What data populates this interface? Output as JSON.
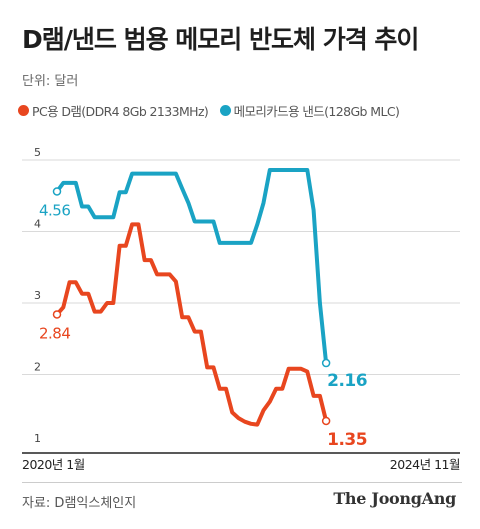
{
  "header": {
    "title": "D램/낸드 범용 메모리 반도체 가격 추이",
    "unit_label": "단위: 달러"
  },
  "footer": {
    "source": "자료: D램익스체인지",
    "brand": "The JoongAng"
  },
  "colors": {
    "dram": "#e8461f",
    "nand": "#1aa3c4",
    "grid": "#dadada",
    "axis": "#222222"
  },
  "chart_data": {
    "type": "line",
    "title": "D램/낸드 범용 메모리 반도체 가격 추이",
    "ylabel": "단위: 달러",
    "xlabel": "",
    "ylim": [
      1,
      5
    ],
    "y_ticks": [
      1,
      2,
      3,
      4,
      5
    ],
    "x_range": [
      "2020-01",
      "2024-11"
    ],
    "x_tick_labels": [
      "2020년 1월",
      "2024년 11월"
    ],
    "grid": true,
    "legend_position": "top-left",
    "series": [
      {
        "name": "PC용 D램(DDR4 8Gb 2133MHz)",
        "color": "#e8461f",
        "start_label": "2.84",
        "end_label": "1.35",
        "points": [
          [
            "2020-01",
            2.84
          ],
          [
            "2020-02",
            2.94
          ],
          [
            "2020-03",
            3.29
          ],
          [
            "2020-04",
            3.29
          ],
          [
            "2020-05",
            3.13
          ],
          [
            "2020-06",
            3.13
          ],
          [
            "2020-07",
            2.88
          ],
          [
            "2020-08",
            2.88
          ],
          [
            "2020-09",
            3.0
          ],
          [
            "2020-10",
            3.0
          ],
          [
            "2020-11",
            3.8
          ],
          [
            "2020-12",
            3.8
          ],
          [
            "2021-01",
            4.1
          ],
          [
            "2021-02",
            4.1
          ],
          [
            "2021-03",
            3.6
          ],
          [
            "2021-04",
            3.6
          ],
          [
            "2021-05",
            3.4
          ],
          [
            "2021-06",
            3.4
          ],
          [
            "2021-07",
            3.4
          ],
          [
            "2021-08",
            3.3
          ],
          [
            "2021-09",
            2.8
          ],
          [
            "2021-10",
            2.8
          ],
          [
            "2021-11",
            2.6
          ],
          [
            "2021-12",
            2.6
          ],
          [
            "2022-01",
            2.1
          ],
          [
            "2022-02",
            2.1
          ],
          [
            "2022-03",
            1.8
          ],
          [
            "2022-04",
            1.8
          ],
          [
            "2022-05",
            1.47
          ],
          [
            "2022-06",
            1.39
          ],
          [
            "2022-07",
            1.34
          ],
          [
            "2022-08",
            1.31
          ],
          [
            "2022-09",
            1.3
          ],
          [
            "2022-10",
            1.5
          ],
          [
            "2022-11",
            1.62
          ],
          [
            "2022-12",
            1.8
          ],
          [
            "2023-01",
            1.8
          ],
          [
            "2023-02",
            2.08
          ],
          [
            "2023-03",
            2.08
          ],
          [
            "2023-04",
            2.08
          ],
          [
            "2023-05",
            2.04
          ],
          [
            "2023-06",
            1.7
          ],
          [
            "2023-07",
            1.7
          ],
          [
            "2023-08",
            1.35
          ]
        ]
      },
      {
        "name": "메모리카드용 낸드(128Gb MLC)",
        "color": "#1aa3c4",
        "start_label": "4.56",
        "end_label": "2.16",
        "points": [
          [
            "2020-01",
            4.56
          ],
          [
            "2020-02",
            4.68
          ],
          [
            "2020-03",
            4.68
          ],
          [
            "2020-04",
            4.68
          ],
          [
            "2020-05",
            4.35
          ],
          [
            "2020-06",
            4.35
          ],
          [
            "2020-07",
            4.2
          ],
          [
            "2020-08",
            4.2
          ],
          [
            "2020-09",
            4.2
          ],
          [
            "2020-10",
            4.2
          ],
          [
            "2020-11",
            4.55
          ],
          [
            "2020-12",
            4.55
          ],
          [
            "2021-01",
            4.81
          ],
          [
            "2021-02",
            4.81
          ],
          [
            "2021-03",
            4.81
          ],
          [
            "2021-04",
            4.81
          ],
          [
            "2021-05",
            4.81
          ],
          [
            "2021-06",
            4.81
          ],
          [
            "2021-07",
            4.81
          ],
          [
            "2021-08",
            4.81
          ],
          [
            "2021-09",
            4.6
          ],
          [
            "2021-10",
            4.4
          ],
          [
            "2021-11",
            4.14
          ],
          [
            "2021-12",
            4.14
          ],
          [
            "2022-01",
            4.14
          ],
          [
            "2022-02",
            4.14
          ],
          [
            "2022-03",
            3.84
          ],
          [
            "2022-04",
            3.84
          ],
          [
            "2022-05",
            3.84
          ],
          [
            "2022-06",
            3.84
          ],
          [
            "2022-07",
            3.84
          ],
          [
            "2022-08",
            3.84
          ],
          [
            "2022-09",
            4.1
          ],
          [
            "2022-10",
            4.4
          ],
          [
            "2022-11",
            4.86
          ],
          [
            "2022-12",
            4.86
          ],
          [
            "2023-01",
            4.86
          ],
          [
            "2023-02",
            4.86
          ],
          [
            "2023-03",
            4.86
          ],
          [
            "2023-04",
            4.86
          ],
          [
            "2023-05",
            4.86
          ],
          [
            "2023-06",
            4.3
          ],
          [
            "2023-07",
            3.0
          ],
          [
            "2023-08",
            2.16
          ]
        ]
      }
    ]
  }
}
